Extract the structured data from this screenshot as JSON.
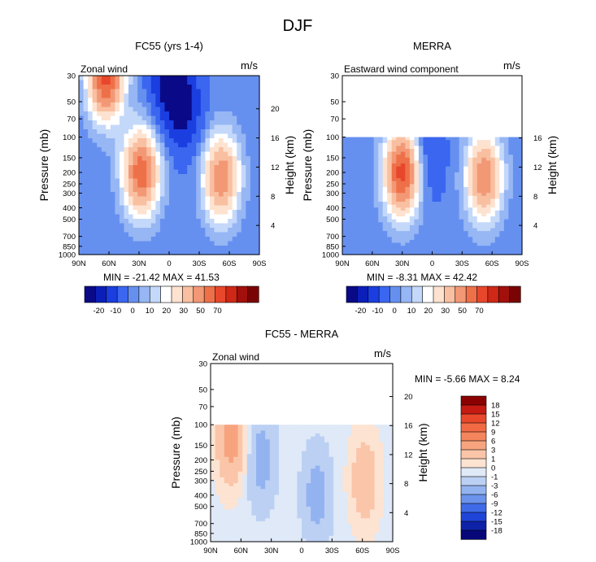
{
  "title": "DJF",
  "chart_data": [
    {
      "type": "heatmap",
      "title": "FC55 (yrs 1-4)",
      "left_label": "Zonal wind",
      "units": "m/s",
      "xlabel": "",
      "ylabel": "Pressure (mb)",
      "ylabel_right": "Height (km)",
      "x_ticks": [
        "90N",
        "60N",
        "30N",
        "0",
        "30S",
        "60S",
        "90S"
      ],
      "y_ticks": [
        30,
        50,
        70,
        100,
        150,
        200,
        250,
        300,
        400,
        500,
        700,
        850,
        1000
      ],
      "y_right_ticks": [
        20,
        16,
        12,
        8,
        4
      ],
      "stats": {
        "min_label": "MIN =",
        "min": "-21.42",
        "max_label": "MAX =",
        "max": "41.53"
      },
      "ylim": [
        30,
        1000
      ],
      "log_y": true,
      "data_top_mb": 30,
      "features": [
        {
          "lat": 63,
          "p": 30,
          "value": 40
        },
        {
          "lat": 28,
          "p": 200,
          "value": 35
        },
        {
          "lat": -52,
          "p": 220,
          "value": 30
        },
        {
          "lat": 0,
          "p": 30,
          "value": -20
        },
        {
          "lat": -15,
          "p": 60,
          "value": -15
        }
      ]
    },
    {
      "type": "heatmap",
      "title": "MERRA",
      "left_label": "Eastward wind component",
      "units": "m/s",
      "xlabel": "",
      "ylabel": "Pressure (mb)",
      "ylabel_right": "Height (km)",
      "x_ticks": [
        "90N",
        "60N",
        "30N",
        "0",
        "30S",
        "60S",
        "90S"
      ],
      "y_ticks": [
        30,
        50,
        70,
        100,
        150,
        200,
        250,
        300,
        400,
        500,
        700,
        850,
        1000
      ],
      "y_right_ticks": [
        16,
        12,
        8,
        4
      ],
      "stats": {
        "min_label": "MIN =",
        "min": "-8.31",
        "max_label": "MAX =",
        "max": "42.42"
      },
      "ylim": [
        30,
        1000
      ],
      "log_y": true,
      "data_top_mb": 100,
      "features": [
        {
          "lat": 30,
          "p": 200,
          "value": 40
        },
        {
          "lat": -52,
          "p": 220,
          "value": 30
        },
        {
          "lat": 5,
          "p": 150,
          "value": -8
        }
      ]
    },
    {
      "type": "heatmap",
      "title": "FC55 - MERRA",
      "left_label": "Zonal wind",
      "units": "m/s",
      "xlabel": "",
      "ylabel": "Pressure (mb)",
      "ylabel_right": "Height (km)",
      "x_ticks": [
        "90N",
        "60N",
        "30N",
        "0",
        "30S",
        "60S",
        "90S"
      ],
      "y_ticks": [
        30,
        50,
        70,
        100,
        150,
        200,
        250,
        300,
        400,
        500,
        700,
        850,
        1000
      ],
      "y_right_ticks": [
        20,
        16,
        12,
        8,
        4
      ],
      "stats": {
        "min_label": "MIN =",
        "min": "-5.66",
        "max_label": "MAX =",
        "max": "8.24"
      },
      "ylim": [
        30,
        1000
      ],
      "log_y": true,
      "data_top_mb": 100,
      "features": [
        {
          "lat": 70,
          "p": 130,
          "value": 6
        },
        {
          "lat": -62,
          "p": 300,
          "value": 4
        },
        {
          "lat": 40,
          "p": 200,
          "value": -3
        },
        {
          "lat": -15,
          "p": 400,
          "value": -3
        }
      ]
    }
  ],
  "colorbar_top": {
    "labels": [
      "-20",
      "-10",
      "0",
      "10",
      "20",
      "30",
      "50",
      "70"
    ],
    "colors": [
      "#0a0a88",
      "#0b1fb8",
      "#1a3ee0",
      "#3a66f0",
      "#6690f0",
      "#96b6f4",
      "#c4d8fa",
      "#ffffff",
      "#fde2cf",
      "#f9bfa1",
      "#f39875",
      "#ee7049",
      "#e8472c",
      "#cf2816",
      "#a3100c",
      "#7a0404"
    ]
  },
  "colorbar_diff": {
    "labels": [
      "18",
      "15",
      "12",
      "9",
      "6",
      "3",
      "1",
      "0",
      "-1",
      "-3",
      "-6",
      "-9",
      "-12",
      "-15",
      "-18"
    ],
    "colors": [
      "#8b0000",
      "#c41a12",
      "#e8472c",
      "#f16a44",
      "#f4855c",
      "#f7a47e",
      "#fac5a8",
      "#fde3d2",
      "#dfe9f7",
      "#bcd0f4",
      "#93b3f0",
      "#6b93ec",
      "#3f6be8",
      "#1f44d8",
      "#0e22a8",
      "#07077a"
    ]
  }
}
